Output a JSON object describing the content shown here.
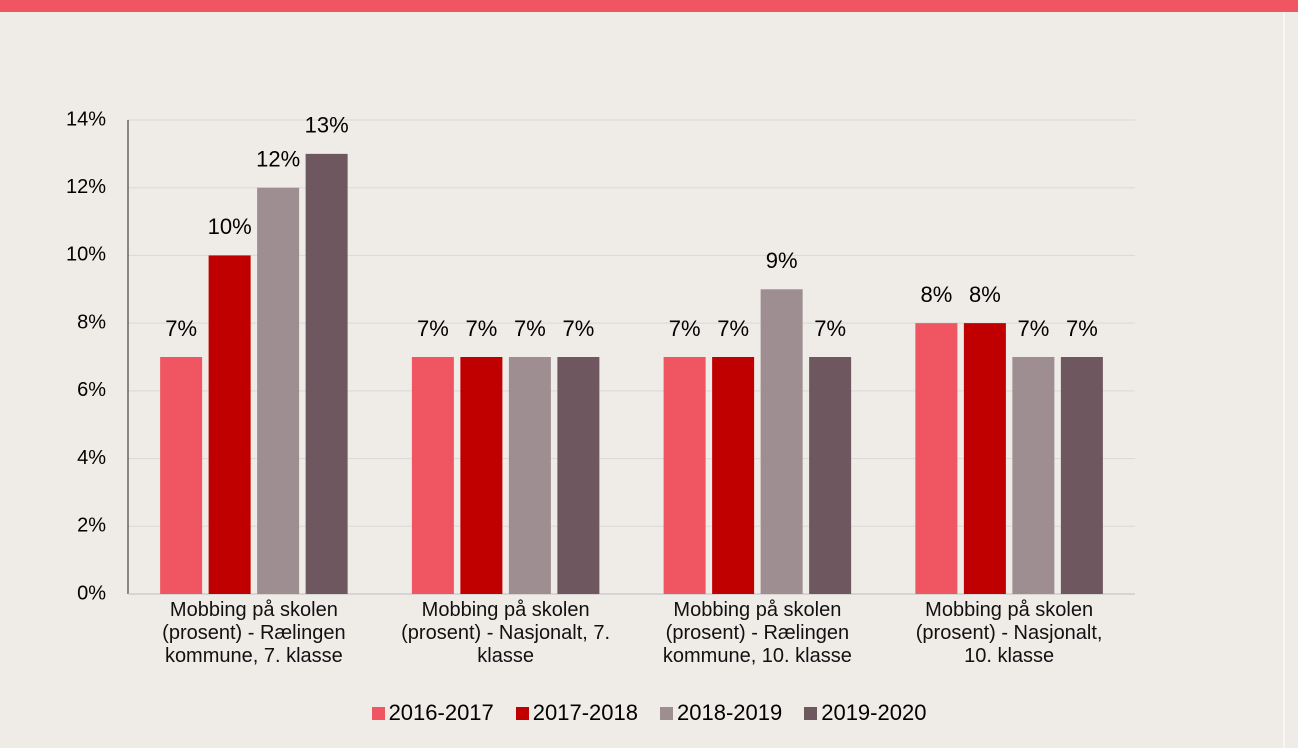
{
  "chart_data": {
    "type": "bar",
    "categories": [
      "Mobbing på skolen\n(prosent) - Rælingen\nkommune, 7. klasse",
      "Mobbing på skolen\n(prosent) - Nasjonalt, 7.\nklasse",
      "Mobbing på skolen\n(prosent) - Rælingen\nkommune, 10. klasse",
      "Mobbing på skolen\n(prosent) - Nasjonalt,\n10. klasse"
    ],
    "series": [
      {
        "name": "2016-2017",
        "color": "#f05562",
        "values": [
          7,
          7,
          7,
          8
        ],
        "value_labels": [
          "7%",
          "7%",
          "7%",
          "8%"
        ]
      },
      {
        "name": "2017-2018",
        "color": "#c00000",
        "values": [
          10,
          7,
          7,
          8
        ],
        "value_labels": [
          "10%",
          "7%",
          "7%",
          "8%"
        ]
      },
      {
        "name": "2018-2019",
        "color": "#9e8e91",
        "values": [
          12,
          7,
          9,
          7
        ],
        "value_labels": [
          "12%",
          "7%",
          "9%",
          "7%"
        ]
      },
      {
        "name": "2019-2020",
        "color": "#6e575e",
        "values": [
          13,
          7,
          7,
          7
        ],
        "value_labels": [
          "13%",
          "7%",
          "7%",
          "7%"
        ]
      }
    ],
    "ylim": [
      0,
      14
    ],
    "yticks": [
      {
        "value": 0,
        "label": "0%"
      },
      {
        "value": 2,
        "label": "2%"
      },
      {
        "value": 4,
        "label": "4%"
      },
      {
        "value": 6,
        "label": "6%"
      },
      {
        "value": 8,
        "label": "8%"
      },
      {
        "value": 10,
        "label": "10%"
      },
      {
        "value": 12,
        "label": "12%"
      },
      {
        "value": 14,
        "label": "14%"
      }
    ],
    "grid": true,
    "legend": "bottom"
  }
}
